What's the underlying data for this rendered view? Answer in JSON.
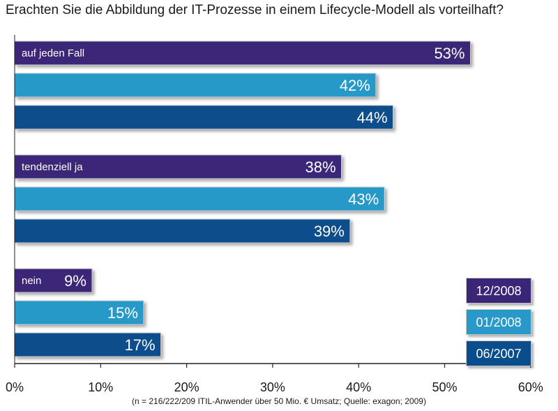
{
  "title": "Erachten Sie die Abbildung der IT-Prozesse in einem Lifecycle-Modell als vorteilhaft?",
  "note": "(n = 216/222/209 ITIL-Anwender über 50 Mio. € Umsatz; Quelle: exagon; 2009)",
  "colors": {
    "12/2008": "#3b2577",
    "01/2008": "#2899c8",
    "06/2007": "#0a4d8c"
  },
  "chart_data": {
    "type": "bar",
    "orientation": "horizontal",
    "categories": [
      "auf jeden Fall",
      "tendenziell ja",
      "nein"
    ],
    "series": [
      {
        "name": "12/2008",
        "values": [
          53,
          38,
          9
        ]
      },
      {
        "name": "01/2008",
        "values": [
          42,
          43,
          15
        ]
      },
      {
        "name": "06/2007",
        "values": [
          44,
          39,
          17
        ]
      }
    ],
    "unit": "%",
    "xlim": [
      0,
      60
    ],
    "xticks": [
      0,
      10,
      20,
      30,
      40,
      50,
      60
    ],
    "legend_position": "bottom-right",
    "grid": false
  }
}
